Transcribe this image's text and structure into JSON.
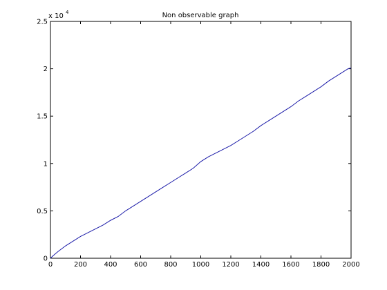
{
  "chart_data": {
    "type": "line",
    "title": "Non observable graph",
    "xlabel": "",
    "ylabel": "",
    "xlim": [
      0,
      2000
    ],
    "ylim": [
      0,
      2.5
    ],
    "y_exponent_label": "x 10",
    "y_exponent": "4",
    "grid": false,
    "x_ticks": [
      "0",
      "200",
      "400",
      "600",
      "800",
      "1000",
      "1200",
      "1400",
      "1600",
      "1800",
      "2000"
    ],
    "y_ticks": [
      "0",
      "0.5",
      "1",
      "1.5",
      "2",
      "2.5"
    ],
    "series": [
      {
        "color": "#1a1aa8",
        "x": [
          0,
          20,
          50,
          100,
          150,
          200,
          250,
          300,
          350,
          400,
          450,
          500,
          550,
          600,
          650,
          700,
          750,
          800,
          850,
          900,
          950,
          1000,
          1050,
          1100,
          1150,
          1200,
          1250,
          1300,
          1350,
          1400,
          1450,
          1500,
          1550,
          1600,
          1650,
          1700,
          1750,
          1800,
          1850,
          1900,
          1950,
          1980,
          2000
        ],
        "y": [
          0,
          0.03,
          0.07,
          0.13,
          0.18,
          0.23,
          0.27,
          0.31,
          0.35,
          0.4,
          0.44,
          0.5,
          0.55,
          0.6,
          0.65,
          0.7,
          0.75,
          0.8,
          0.85,
          0.9,
          0.95,
          1.02,
          1.07,
          1.11,
          1.15,
          1.19,
          1.24,
          1.29,
          1.34,
          1.4,
          1.45,
          1.5,
          1.55,
          1.6,
          1.66,
          1.71,
          1.76,
          1.81,
          1.87,
          1.92,
          1.97,
          2.0,
          2.01
        ]
      }
    ]
  }
}
